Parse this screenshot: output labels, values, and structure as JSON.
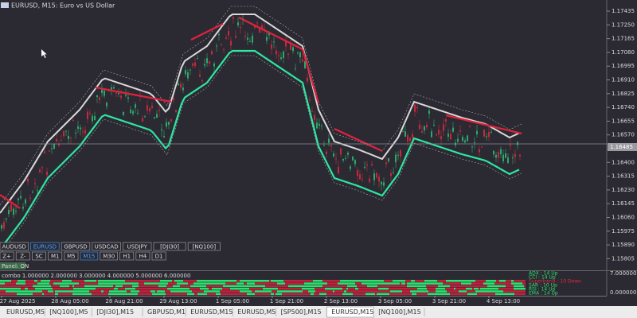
{
  "window": {
    "title": "EURUSD, M15:  Euro vs US Dollar"
  },
  "price_axis": {
    "labels": [
      "1.17435",
      "1.17250",
      "1.17165",
      "1.17080",
      "1.16995",
      "1.16910",
      "1.16825",
      "1.16740",
      "1.16655",
      "1.16570",
      "1.16400",
      "1.16315",
      "1.16230",
      "1.16145",
      "1.16060",
      "1.15975",
      "1.15890",
      "1.15805"
    ],
    "current": "1.16485"
  },
  "time_axis": {
    "labels": [
      "27 Aug 2025",
      "28 Aug 05:00",
      "28 Aug 21:00",
      "29 Aug 13:00",
      "1 Sep 05:00",
      "1 Sep 21:00",
      "2 Sep 13:00",
      "3 Sep 05:00",
      "3 Sep 21:00",
      "4 Sep 13:00"
    ]
  },
  "symbol_buttons": [
    {
      "label": "AUDUSD"
    },
    {
      "label": "EURUSD",
      "active": true
    },
    {
      "label": "GBPUSD"
    },
    {
      "label": "USDCAD"
    },
    {
      "label": "USDJPY"
    },
    {
      "label": "[DJI30]"
    },
    {
      "label": "[NQ100]"
    }
  ],
  "timeframe_buttons": [
    {
      "label": "Z+"
    },
    {
      "label": "Z-"
    },
    {
      "label": "SC"
    },
    {
      "label": "M1"
    },
    {
      "label": "M5"
    },
    {
      "label": "M15",
      "active": true
    },
    {
      "label": "M30"
    },
    {
      "label": "H1"
    },
    {
      "label": "H4"
    },
    {
      "label": "D1"
    }
  ],
  "panel_button": "Panel: ON",
  "indicator": {
    "label": "combo  1.000000 2.000000 3.000000 4.000000 5.000000 6.000000",
    "levels": [
      "7.000000",
      "0.000000"
    ],
    "legend": [
      {
        "text": "ADX : 14 Up",
        "color": "#2ee06e"
      },
      {
        "text": "CCI : 14 Up",
        "color": "#2ee06e"
      },
      {
        "text": "Supertrend : 10 Down",
        "color": "#e8263f"
      },
      {
        "text": "SAR : 10 Up",
        "color": "#2ee06e"
      },
      {
        "text": "RSI : 14 Up",
        "color": "#2ee06e"
      },
      {
        "text": "EMA : 14 Up",
        "color": "#2ee06e"
      }
    ]
  },
  "tabs": [
    {
      "label": "EURUSD,M5"
    },
    {
      "label": "[NQ100],M5"
    },
    {
      "label": "[DJI30],M15"
    },
    {
      "label": "GBPUSD,M1"
    },
    {
      "label": "EURUSD,M15"
    },
    {
      "label": "EURUSD,M5"
    },
    {
      "label": "[SP500],M15"
    },
    {
      "label": "EURUSD,M15",
      "active": true
    },
    {
      "label": "[NQ100],M15"
    }
  ]
}
